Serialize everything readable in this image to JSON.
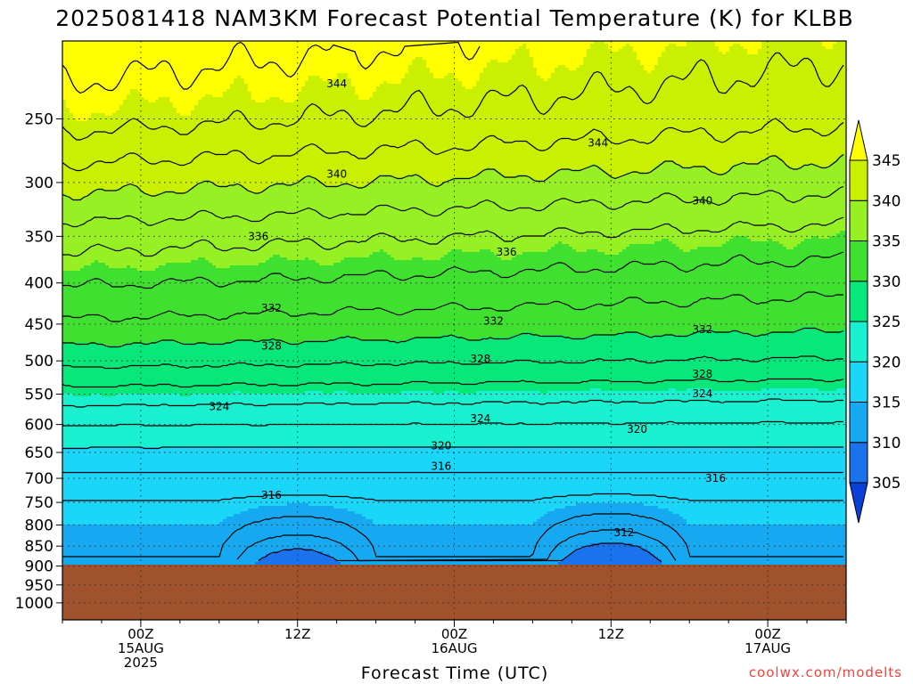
{
  "title": "2025081418 NAM3KM Forecast Potential Temperature (K) for KLBB",
  "credit": "coolwx.com/modelts",
  "colors": {
    "ground": "#a0522d",
    "frame": "#000000",
    "contour": "#000000",
    "credit": "#e8463c"
  },
  "chart_data": {
    "type": "heatmap",
    "title": "2025081418 NAM3KM Forecast Potential Temperature (K) for KLBB",
    "xlabel": "Forecast Time (UTC)",
    "ylabel": "",
    "x_range_hours": [
      -6,
      54
    ],
    "y_range_hPa": [
      200,
      1050
    ],
    "y_scale": "log-pressure (inverted)",
    "grid": true,
    "ground_level_hPa": 900,
    "y_ticks": [
      250,
      300,
      350,
      400,
      450,
      500,
      550,
      600,
      650,
      700,
      750,
      800,
      850,
      900,
      950,
      1000
    ],
    "x_ticks": [
      {
        "hour": 0,
        "lines": [
          "00Z",
          "15AUG",
          "2025"
        ]
      },
      {
        "hour": 12,
        "lines": [
          "12Z"
        ]
      },
      {
        "hour": 24,
        "lines": [
          "00Z",
          "16AUG"
        ]
      },
      {
        "hour": 36,
        "lines": [
          "12Z"
        ]
      },
      {
        "hour": 48,
        "lines": [
          "00Z",
          "17AUG"
        ]
      }
    ],
    "colorbar": {
      "levels": [
        305,
        310,
        315,
        320,
        325,
        330,
        335,
        340,
        345
      ],
      "colors": [
        "#0a3fd8",
        "#1a72ec",
        "#17a8f2",
        "#1ad6f8",
        "#18f0cf",
        "#08e87a",
        "#3fe030",
        "#96f024",
        "#c8f000",
        "#ffff00"
      ]
    },
    "contour_interval_K": 2,
    "contour_labels": [
      {
        "value": 344,
        "hour": 15.0,
        "p": 226
      },
      {
        "value": 344,
        "hour": 35.0,
        "p": 268
      },
      {
        "value": 340,
        "hour": 15.0,
        "p": 293
      },
      {
        "value": 340,
        "hour": 43.0,
        "p": 316
      },
      {
        "value": 336,
        "hour": 9.0,
        "p": 350
      },
      {
        "value": 336,
        "hour": 28.0,
        "p": 366
      },
      {
        "value": 332,
        "hour": 10.0,
        "p": 430
      },
      {
        "value": 332,
        "hour": 27.0,
        "p": 446
      },
      {
        "value": 332,
        "hour": 43.0,
        "p": 457
      },
      {
        "value": 328,
        "hour": 10.0,
        "p": 479
      },
      {
        "value": 328,
        "hour": 26.0,
        "p": 497
      },
      {
        "value": 328,
        "hour": 43.0,
        "p": 519
      },
      {
        "value": 324,
        "hour": 6.0,
        "p": 570
      },
      {
        "value": 324,
        "hour": 26.0,
        "p": 590
      },
      {
        "value": 324,
        "hour": 43.0,
        "p": 549
      },
      {
        "value": 320,
        "hour": 23.0,
        "p": 638
      },
      {
        "value": 320,
        "hour": 38.0,
        "p": 608
      },
      {
        "value": 316,
        "hour": 23.0,
        "p": 676
      },
      {
        "value": 316,
        "hour": 10.0,
        "p": 735
      },
      {
        "value": 316,
        "hour": 44.0,
        "p": 700
      },
      {
        "value": 312,
        "hour": 37.0,
        "p": 818
      }
    ]
  }
}
